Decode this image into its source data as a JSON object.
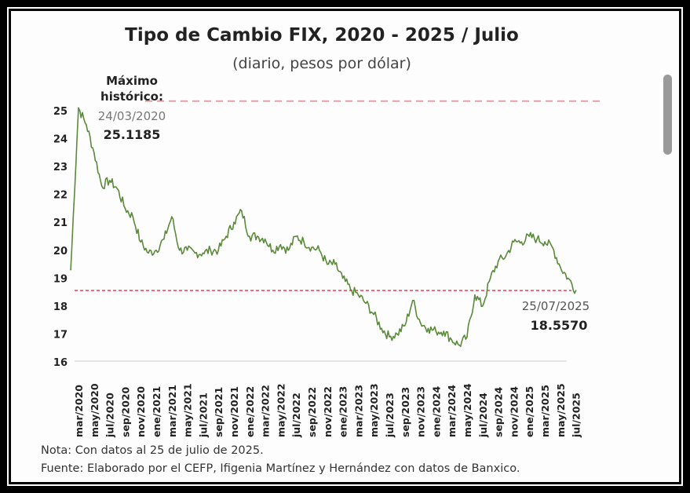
{
  "chart_data": {
    "type": "line",
    "title": "Tipo de Cambio FIX, 2020 - 2025 / Julio",
    "subtitle": "(diario, pesos por dólar)",
    "ylim": [
      16,
      25
    ],
    "yticks": [
      16,
      17,
      18,
      19,
      20,
      21,
      22,
      23,
      24,
      25
    ],
    "xticks": [
      "mar/2020",
      "may/2020",
      "jul/2020",
      "sep/2020",
      "nov/2020",
      "ene/2021",
      "mar/2021",
      "may/2021",
      "jul/2021",
      "sep/2021",
      "nov/2021",
      "ene/2022",
      "mar/2022",
      "may/2022",
      "jul/2022",
      "sep/2022",
      "nov/2022",
      "ene/2023",
      "mar/2023",
      "may/2023",
      "jul/2023",
      "sep/2023",
      "nov/2023",
      "ene/2024",
      "mar/2024",
      "may/2024",
      "jul/2024",
      "sep/2024",
      "nov/2024",
      "ene/2025",
      "mar/2025",
      "may/2025",
      "jul/2025"
    ],
    "series_color": "#5a8a3a",
    "x": [
      "2020-02",
      "2020-03",
      "2020-04",
      "2020-05",
      "2020-06",
      "2020-07",
      "2020-08",
      "2020-09",
      "2020-10",
      "2020-11",
      "2020-12",
      "2021-01",
      "2021-02",
      "2021-03",
      "2021-04",
      "2021-05",
      "2021-06",
      "2021-07",
      "2021-08",
      "2021-09",
      "2021-10",
      "2021-11",
      "2021-12",
      "2022-01",
      "2022-02",
      "2022-03",
      "2022-04",
      "2022-05",
      "2022-06",
      "2022-07",
      "2022-08",
      "2022-09",
      "2022-10",
      "2022-11",
      "2022-12",
      "2023-01",
      "2023-02",
      "2023-03",
      "2023-04",
      "2023-05",
      "2023-06",
      "2023-07",
      "2023-08",
      "2023-09",
      "2023-10",
      "2023-11",
      "2023-12",
      "2024-01",
      "2024-02",
      "2024-03",
      "2024-04",
      "2024-05",
      "2024-06",
      "2024-07",
      "2024-08",
      "2024-09",
      "2024-10",
      "2024-11",
      "2024-12",
      "2025-01",
      "2025-02",
      "2025-03",
      "2025-04",
      "2025-05",
      "2025-06",
      "2025-07"
    ],
    "y": [
      19.3,
      25.1,
      24.5,
      23.5,
      22.3,
      22.5,
      22.2,
      21.5,
      21.2,
      20.3,
      19.9,
      20.0,
      20.4,
      21.2,
      20.0,
      20.0,
      19.9,
      19.9,
      20.0,
      20.0,
      20.5,
      21.0,
      21.4,
      20.5,
      20.5,
      20.4,
      20.0,
      20.2,
      20.0,
      20.5,
      20.3,
      20.1,
      20.0,
      19.5,
      19.5,
      19.0,
      18.6,
      18.4,
      18.1,
      17.7,
      17.2,
      16.9,
      17.0,
      17.3,
      18.2,
      17.4,
      17.2,
      17.1,
      17.1,
      16.8,
      16.6,
      16.9,
      18.4,
      18.0,
      19.0,
      19.6,
      19.8,
      20.3,
      20.3,
      20.5,
      20.4,
      20.3,
      20.1,
      19.4,
      19.0,
      18.557
    ],
    "reference_lines": [
      {
        "value": 25.1185,
        "color": "#e8a0a8"
      },
      {
        "value": 18.557,
        "color": "#e03040"
      }
    ],
    "annotations": {
      "max_label": "Máximo histórico:",
      "max_date": "24/03/2020",
      "max_value": "25.1185",
      "last_date": "25/07/2025",
      "last_value": "18.5570"
    }
  },
  "notes": {
    "nota": "Nota: Con datos al 25 de julio de 2025.",
    "fuente": "Fuente: Elaborado por el CEFP, Ifigenia Martínez y Hernández con datos de Banxico."
  }
}
